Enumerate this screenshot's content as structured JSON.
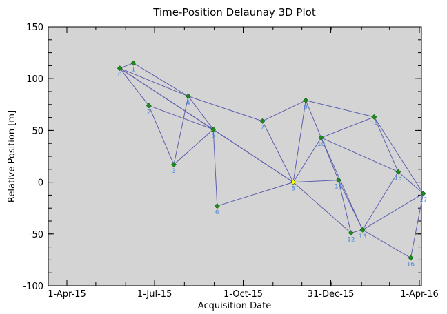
{
  "chart_data": {
    "type": "scatter",
    "title": "Time-Position Delaunay 3D Plot",
    "xlabel": "Acquisition Date",
    "ylabel": "Relative Position [m]",
    "x_range": [
      "2015-04-01",
      "2016-04-01"
    ],
    "ylim": [
      -100,
      150
    ],
    "x_ticks": [
      {
        "date": "2015-04-01",
        "label": "1-Apr-15"
      },
      {
        "date": "2015-07-01",
        "label": "1-Jul-15"
      },
      {
        "date": "2015-10-01",
        "label": "1-Oct-15"
      },
      {
        "date": "2015-12-31",
        "label": "31-Dec-15"
      },
      {
        "date": "2016-04-01",
        "label": "1-Apr-16"
      }
    ],
    "y_ticks": [
      150,
      100,
      50,
      0,
      -50,
      -100
    ],
    "grid": false,
    "colors": {
      "plot_background": "#d4d4d4",
      "edge": "#5b5fae",
      "point": "#1d8c1d",
      "reference_point": "#ffff00",
      "point_label": "#4f86d6"
    },
    "points": [
      {
        "label": "0",
        "date": "2015-05-26",
        "y": 110
      },
      {
        "label": "1",
        "date": "2015-06-09",
        "y": 115
      },
      {
        "label": "2",
        "date": "2015-06-25",
        "y": 74
      },
      {
        "label": "3",
        "date": "2015-07-21",
        "y": 17
      },
      {
        "label": "4",
        "date": "2015-08-05",
        "y": 83
      },
      {
        "label": "5",
        "date": "2015-08-31",
        "y": 51
      },
      {
        "label": "6",
        "date": "2015-09-04",
        "y": -23
      },
      {
        "label": "7",
        "date": "2015-10-21",
        "y": 59
      },
      {
        "label": "8",
        "date": "2015-11-22",
        "y": 0,
        "reference": true
      },
      {
        "label": "9",
        "date": "2015-12-05",
        "y": 79
      },
      {
        "label": "10",
        "date": "2015-12-21",
        "y": 43
      },
      {
        "label": "11",
        "date": "2016-01-08",
        "y": 2
      },
      {
        "label": "12",
        "date": "2016-01-21",
        "y": -49
      },
      {
        "label": "13",
        "date": "2016-02-02",
        "y": -46
      },
      {
        "label": "14",
        "date": "2016-02-14",
        "y": 63
      },
      {
        "label": "15",
        "date": "2016-03-10",
        "y": 10
      },
      {
        "label": "16",
        "date": "2016-03-23",
        "y": -73
      },
      {
        "label": "17",
        "date": "2016-04-05",
        "y": -11
      }
    ],
    "edges": [
      [
        0,
        1
      ],
      [
        0,
        2
      ],
      [
        0,
        4
      ],
      [
        0,
        5
      ],
      [
        0,
        8
      ],
      [
        1,
        4
      ],
      [
        2,
        3
      ],
      [
        2,
        5
      ],
      [
        3,
        4
      ],
      [
        3,
        5
      ],
      [
        4,
        5
      ],
      [
        4,
        7
      ],
      [
        5,
        6
      ],
      [
        5,
        8
      ],
      [
        6,
        8
      ],
      [
        7,
        8
      ],
      [
        7,
        9
      ],
      [
        8,
        9
      ],
      [
        8,
        10
      ],
      [
        8,
        11
      ],
      [
        8,
        12
      ],
      [
        9,
        10
      ],
      [
        9,
        14
      ],
      [
        10,
        11
      ],
      [
        10,
        13
      ],
      [
        10,
        14
      ],
      [
        10,
        15
      ],
      [
        11,
        12
      ],
      [
        11,
        13
      ],
      [
        12,
        13
      ],
      [
        13,
        15
      ],
      [
        13,
        16
      ],
      [
        13,
        17
      ],
      [
        14,
        15
      ],
      [
        14,
        17
      ],
      [
        15,
        17
      ],
      [
        16,
        17
      ]
    ]
  }
}
